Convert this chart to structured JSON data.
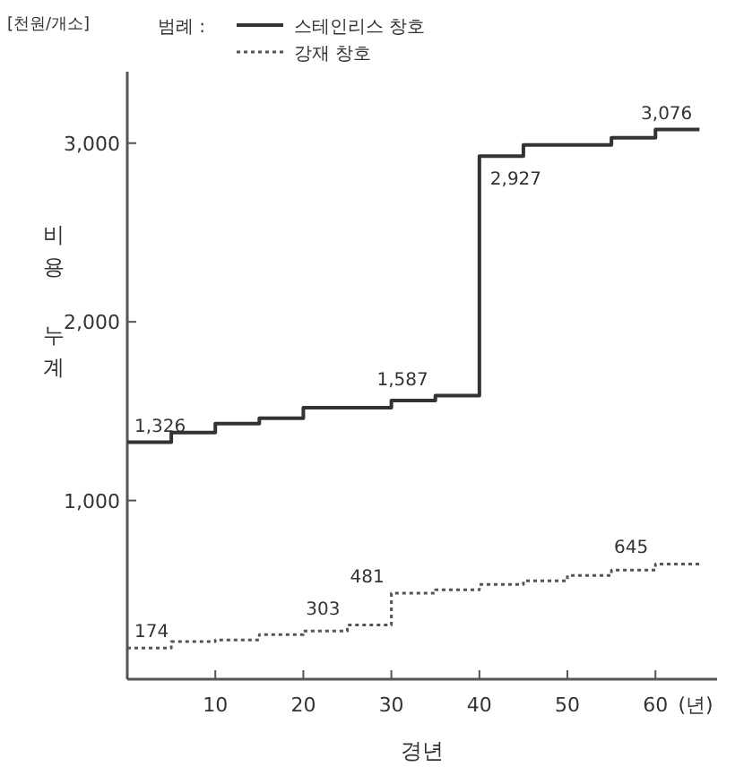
{
  "chart_data": {
    "type": "step",
    "xlabel": "경년",
    "ylabel": "비용 누계",
    "legend_title": "범례 :",
    "legend": "top left",
    "annotations": [
      "[천원/개소]",
      "(년)"
    ],
    "xlim": [
      0,
      67
    ],
    "ylim": [
      0,
      3400
    ],
    "xticks": [
      10,
      20,
      30,
      40,
      50,
      60
    ],
    "yticks": [
      {
        "value": 1000,
        "label": "1,000"
      },
      {
        "value": 2000,
        "label": "2,000"
      },
      {
        "value": 3000,
        "label": "3,000"
      }
    ],
    "series": [
      {
        "name": "스테인리스 창호",
        "color": "#333333",
        "line_style": "solid",
        "x": [
          0,
          5,
          10,
          15,
          20,
          30,
          35,
          40,
          45,
          55,
          60,
          65
        ],
        "values": [
          1326,
          1380,
          1430,
          1460,
          1520,
          1560,
          1587,
          2927,
          2990,
          3030,
          3076,
          3076
        ],
        "value_labels": [
          "1,326",
          null,
          null,
          null,
          null,
          null,
          "1,587",
          "2,927",
          null,
          null,
          null,
          "3,076"
        ]
      },
      {
        "name": "강재 창호",
        "color": "#555555",
        "line_style": "dotted",
        "x": [
          0,
          5,
          10,
          15,
          20,
          25,
          30,
          35,
          40,
          45,
          50,
          55,
          60,
          65
        ],
        "values": [
          174,
          210,
          220,
          250,
          270,
          303,
          481,
          500,
          530,
          550,
          580,
          610,
          645,
          645
        ],
        "value_labels": [
          "174",
          null,
          null,
          null,
          null,
          "303",
          "481",
          null,
          null,
          null,
          null,
          null,
          "645",
          null
        ]
      }
    ]
  }
}
